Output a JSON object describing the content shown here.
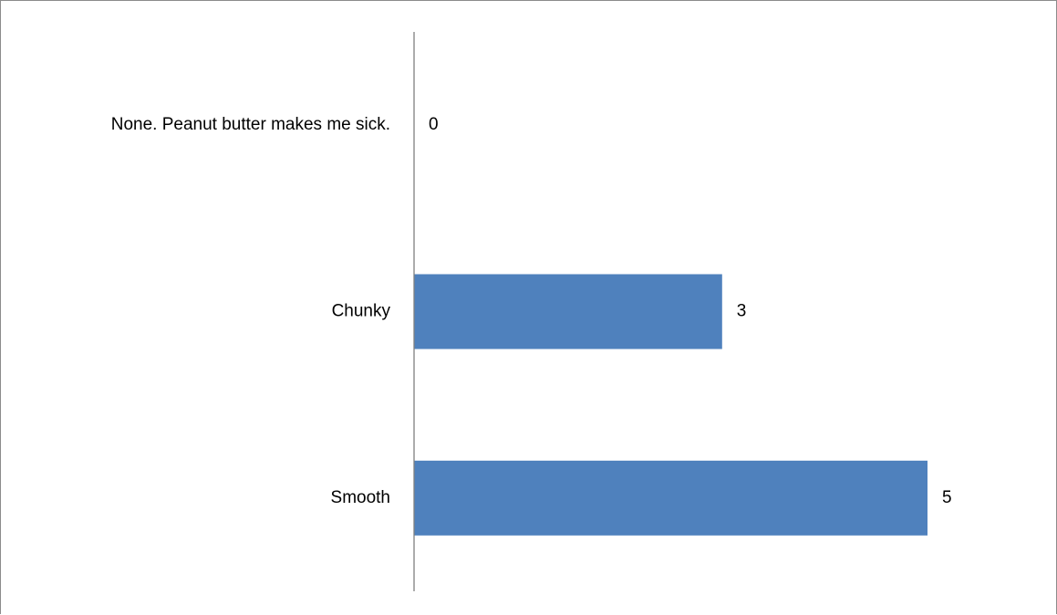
{
  "chart_data": {
    "type": "bar",
    "orientation": "horizontal",
    "categories": [
      "None. Peanut butter makes me sick.",
      "Chunky",
      "Smooth"
    ],
    "values": [
      0,
      3,
      5
    ],
    "data_labels": [
      "0",
      "3",
      "5"
    ],
    "title": "",
    "xlabel": "",
    "ylabel": "",
    "xlim": [
      0,
      5
    ],
    "grid": false,
    "legend": "none",
    "bar_color": "#4f81bd",
    "axis_color": "#808080"
  }
}
